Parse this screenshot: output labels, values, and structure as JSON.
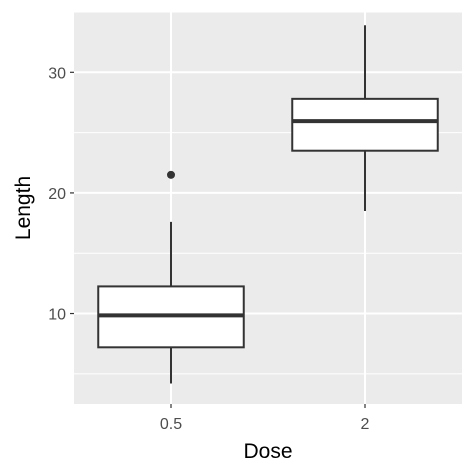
{
  "chart_data": {
    "type": "box",
    "title": "",
    "xlabel": "Dose",
    "ylabel": "Length",
    "categories": [
      "0.5",
      "2"
    ],
    "y_ticks": [
      10,
      20,
      30
    ],
    "ylim": [
      2.5,
      35.0
    ],
    "grid": true,
    "legend": "none",
    "boxes": [
      {
        "category": "0.5",
        "whisker_low": 4.2,
        "q1": 7.2,
        "median": 9.85,
        "q3": 12.25,
        "whisker_high": 17.6,
        "outliers": [
          21.5
        ]
      },
      {
        "category": "2",
        "whisker_low": 18.5,
        "q1": 23.5,
        "median": 25.95,
        "q3": 27.8,
        "whisker_high": 33.9,
        "outliers": []
      }
    ],
    "colors": {
      "panel_background": "#ebebeb",
      "grid_line": "#ffffff",
      "box_fill": "#ffffff",
      "box_line": "#333333",
      "tick_text": "#4d4d4d",
      "title_text": "#000000"
    }
  }
}
